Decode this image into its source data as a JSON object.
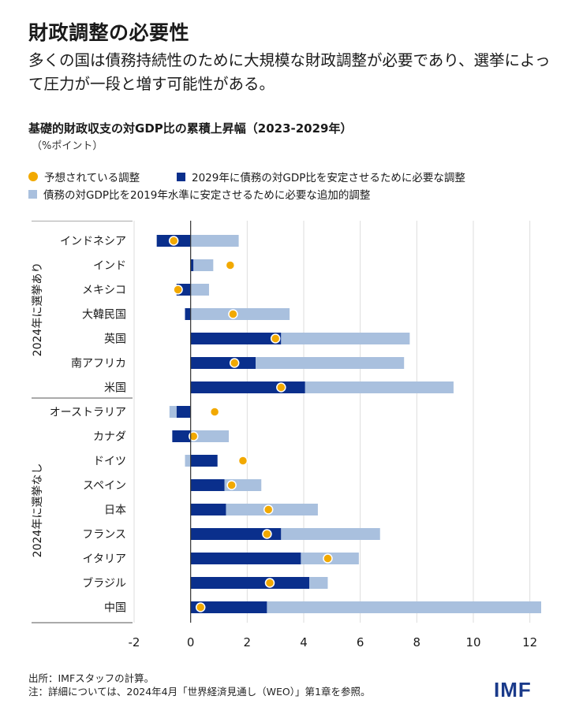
{
  "header": {
    "title": "財政調整の必要性",
    "subtitle": "多くの国は債務持続性のために大規模な財政調整が必要であり、選挙によって圧力が一段と増す可能性がある。"
  },
  "colors": {
    "dot": "#f2a900",
    "dark": "#0a2f8c",
    "light": "#a9c0de",
    "axis": "#333333",
    "grid": "#dddddd"
  },
  "chart_data": {
    "type": "bar",
    "title": "基礎的財政収支の対GDP比の累積上昇幅（2023-2029年）",
    "unit": "（%ポイント）",
    "legend": [
      {
        "key": "projected",
        "label": "予想されている調整"
      },
      {
        "key": "stabilize",
        "label": "2029年に債務の対GDP比を安定させるために必要な調整"
      },
      {
        "key": "additional",
        "label": "債務の対GDP比を2019年水準に安定させるために必要な追加的調整"
      }
    ],
    "xlim": [
      -2,
      12.5
    ],
    "xticks": [
      -2,
      0,
      2,
      4,
      6,
      8,
      10,
      12
    ],
    "groups": [
      {
        "label": "2024年に選挙あり",
        "categories": [
          {
            "name": "インドネシア",
            "stabilize": -1.2,
            "additional": 1.7,
            "projected": -0.6
          },
          {
            "name": "インド",
            "stabilize": 0.1,
            "additional": 0.7,
            "projected": 1.4
          },
          {
            "name": "メキシコ",
            "stabilize": -0.5,
            "additional": 0.65,
            "projected": -0.45
          },
          {
            "name": "大韓民国",
            "stabilize": -0.2,
            "additional": 3.5,
            "projected": 1.5
          },
          {
            "name": "英国",
            "stabilize": 3.2,
            "additional": 4.55,
            "projected": 3.0
          },
          {
            "name": "南アフリカ",
            "stabilize": 2.3,
            "additional": 5.25,
            "projected": 1.55
          },
          {
            "name": "米国",
            "stabilize": 4.05,
            "additional": 5.25,
            "projected": 3.2
          }
        ]
      },
      {
        "label": "2024年に選挙なし",
        "categories": [
          {
            "name": "オーストラリア",
            "stabilize": -0.5,
            "additional": -0.25,
            "projected": 0.85
          },
          {
            "name": "カナダ",
            "stabilize": -0.65,
            "additional": 1.35,
            "projected": 0.1
          },
          {
            "name": "ドイツ",
            "stabilize": 0.95,
            "additional": -0.2,
            "projected": 1.85
          },
          {
            "name": "スペイン",
            "stabilize": 1.2,
            "additional": 1.3,
            "projected": 1.45
          },
          {
            "name": "日本",
            "stabilize": 1.25,
            "additional": 3.25,
            "projected": 2.75
          },
          {
            "name": "フランス",
            "stabilize": 3.2,
            "additional": 3.5,
            "projected": 2.7
          },
          {
            "name": "イタリア",
            "stabilize": 3.9,
            "additional": 2.05,
            "projected": 4.85
          },
          {
            "name": "ブラジル",
            "stabilize": 4.2,
            "additional": 0.65,
            "projected": 2.8
          },
          {
            "name": "中国",
            "stabilize": 2.7,
            "additional": 9.7,
            "projected": 0.35
          }
        ]
      }
    ]
  },
  "footer": {
    "source": "出所：IMFスタッフの計算。",
    "note": "注：詳細については、2024年4月「世界経済見通し（WEO）」第1章を参照。"
  },
  "logo": "IMF"
}
